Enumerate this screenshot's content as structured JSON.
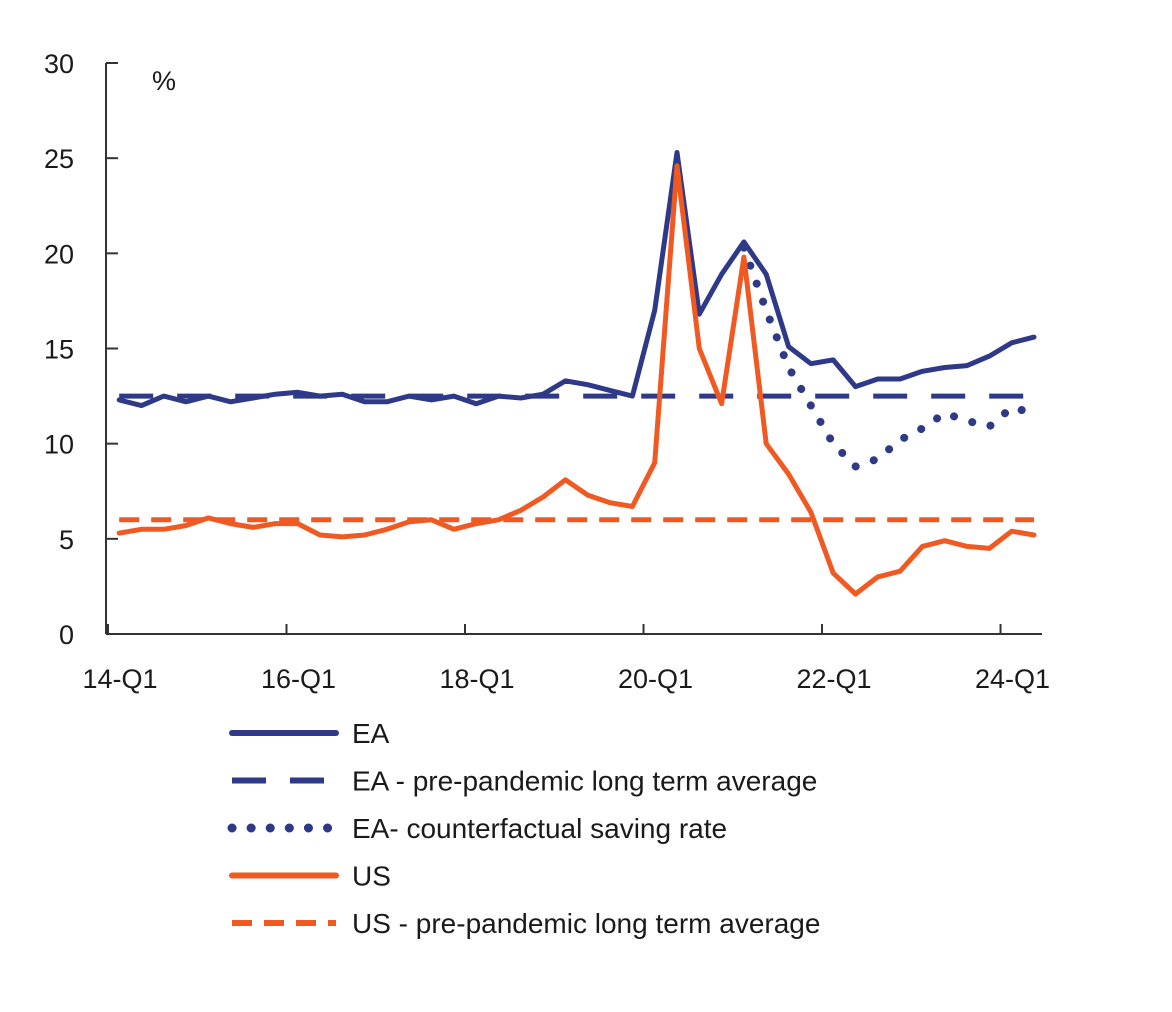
{
  "chart_data": {
    "type": "line",
    "title": "",
    "ylabel": "%",
    "xlabel": "",
    "ylim": [
      0,
      30
    ],
    "yticks": [
      0,
      5,
      10,
      15,
      20,
      25,
      30
    ],
    "xlim": [
      0,
      41.5
    ],
    "xticks": [
      {
        "label": "14-Q1",
        "pos": 0
      },
      {
        "label": "16-Q1",
        "pos": 8
      },
      {
        "label": "18-Q1",
        "pos": 16
      },
      {
        "label": "20-Q1",
        "pos": 24
      },
      {
        "label": "22-Q1",
        "pos": 32
      },
      {
        "label": "24-Q1",
        "pos": 40
      }
    ],
    "colors": {
      "ea": "#2e3a87",
      "us": "#f05a22",
      "axis": "#333333"
    },
    "series": [
      {
        "key": "ea",
        "name": "EA",
        "style": "solid",
        "color": "#2e3a87",
        "x": [
          0.5,
          1.5,
          2.5,
          3.5,
          4.5,
          5.5,
          6.5,
          7.5,
          8.5,
          9.5,
          10.5,
          11.5,
          12.5,
          13.5,
          14.5,
          15.5,
          16.5,
          17.5,
          18.5,
          19.5,
          20.5,
          21.5,
          22.5,
          23.5,
          24.5,
          25.5,
          26.5,
          27.5,
          28.5,
          29.5,
          30.5,
          31.5,
          32.5,
          33.5,
          34.5,
          35.5,
          36.5,
          37.5,
          38.5,
          39.5,
          40.5,
          41.5
        ],
        "values": [
          12.3,
          12.0,
          12.5,
          12.2,
          12.5,
          12.2,
          12.4,
          12.6,
          12.7,
          12.5,
          12.6,
          12.2,
          12.2,
          12.5,
          12.3,
          12.5,
          12.1,
          12.5,
          12.4,
          12.6,
          13.3,
          13.1,
          12.8,
          12.5,
          17.0,
          25.3,
          16.8,
          18.9,
          20.6,
          18.9,
          15.1,
          14.2,
          14.4,
          13.0,
          13.4,
          13.4,
          13.8,
          14.0,
          14.1,
          14.6,
          15.3,
          15.6
        ]
      },
      {
        "key": "ea_avg",
        "name": "EA - pre-pandemic long term average",
        "style": "longdash",
        "color": "#2e3a87",
        "x": [
          0.5,
          41.5
        ],
        "values": [
          12.5,
          12.5
        ]
      },
      {
        "key": "ea_cf",
        "name": "EA- counterfactual saving rate",
        "style": "dotted",
        "color": "#2e3a87",
        "x": [
          28.5,
          29.5,
          30.5,
          31.5,
          32.5,
          33.5,
          34.5,
          35.5,
          36.5,
          37.5,
          38.5,
          39.5,
          40.5,
          41.5
        ],
        "values": [
          20.3,
          17.0,
          14.0,
          12.0,
          10.0,
          8.8,
          9.2,
          10.2,
          10.8,
          11.6,
          11.2,
          10.9,
          11.9,
          11.6
        ]
      },
      {
        "key": "us",
        "name": "US",
        "style": "solid",
        "color": "#f05a22",
        "x": [
          0.5,
          1.5,
          2.5,
          3.5,
          4.5,
          5.5,
          6.5,
          7.5,
          8.5,
          9.5,
          10.5,
          11.5,
          12.5,
          13.5,
          14.5,
          15.5,
          16.5,
          17.5,
          18.5,
          19.5,
          20.5,
          21.5,
          22.5,
          23.5,
          24.5,
          25.5,
          26.5,
          27.5,
          28.5,
          29.5,
          30.5,
          31.5,
          32.5,
          33.5,
          34.5,
          35.5,
          36.5,
          37.5,
          38.5,
          39.5,
          40.5,
          41.5
        ],
        "values": [
          5.3,
          5.5,
          5.5,
          5.7,
          6.1,
          5.8,
          5.6,
          5.8,
          5.8,
          5.2,
          5.1,
          5.2,
          5.5,
          5.9,
          6.0,
          5.5,
          5.8,
          6.0,
          6.5,
          7.2,
          8.1,
          7.3,
          6.9,
          6.7,
          9.0,
          24.6,
          15.0,
          12.1,
          19.8,
          10.0,
          8.4,
          6.4,
          3.2,
          2.1,
          3.0,
          3.3,
          4.6,
          4.9,
          4.6,
          4.5,
          5.4,
          5.2
        ]
      },
      {
        "key": "us_avg",
        "name": "US - pre-pandemic long term average",
        "style": "shortdash",
        "color": "#f05a22",
        "x": [
          0.5,
          41.5
        ],
        "values": [
          6.0,
          6.0
        ]
      }
    ],
    "legend": [
      {
        "label": "EA",
        "style": "solid",
        "color": "#2e3a87"
      },
      {
        "label": "EA - pre-pandemic long term average",
        "style": "longdash",
        "color": "#2e3a87"
      },
      {
        "label": "EA- counterfactual saving rate",
        "style": "dotted",
        "color": "#2e3a87"
      },
      {
        "label": "US",
        "style": "solid",
        "color": "#f05a22"
      },
      {
        "label": "US - pre-pandemic long term average",
        "style": "shortdash",
        "color": "#f05a22"
      }
    ],
    "legend_position": "bottom"
  }
}
